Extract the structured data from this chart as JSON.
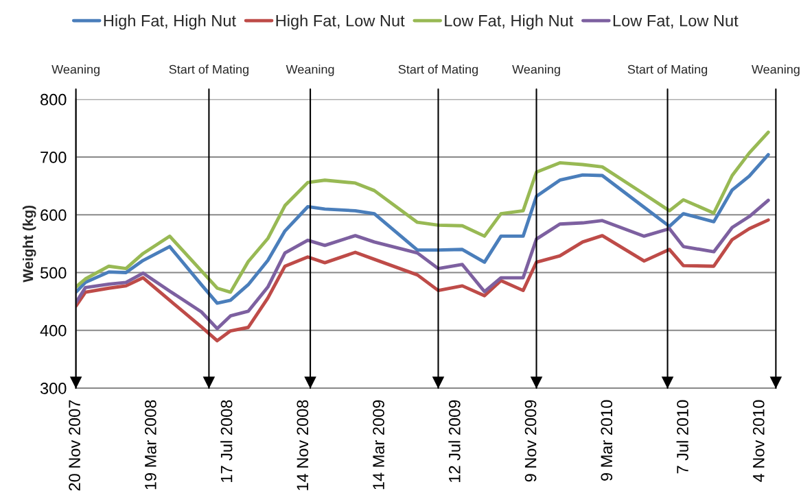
{
  "chart_data": {
    "type": "line",
    "ylabel": "Weight (kg)",
    "x": [
      "2007-11-20",
      "2007-12-05",
      "2008-01-11",
      "2008-02-07",
      "2008-03-05",
      "2008-04-16",
      "2008-06-05",
      "2008-06-30",
      "2008-07-21",
      "2008-08-18",
      "2008-09-18",
      "2008-10-15",
      "2008-11-20",
      "2008-12-17",
      "2009-02-03",
      "2009-03-05",
      "2009-05-12",
      "2009-06-14",
      "2009-07-22",
      "2009-08-26",
      "2009-09-21",
      "2009-10-26",
      "2009-11-16",
      "2009-12-23",
      "2010-01-28",
      "2010-02-28",
      "2010-05-05",
      "2010-06-14",
      "2010-07-06",
      "2010-08-23",
      "2010-09-21",
      "2010-10-18",
      "2010-11-17"
    ],
    "series": [
      {
        "name": "High Fat, High Nut",
        "color": "#4a7ebb",
        "values": [
          466,
          483,
          501,
          500,
          521,
          545,
          479,
          447,
          452,
          479,
          521,
          572,
          614,
          610,
          607,
          602,
          539,
          539,
          540,
          518,
          563,
          563,
          632,
          660,
          669,
          668,
          613,
          580,
          602,
          588,
          643,
          667,
          704
        ]
      },
      {
        "name": "High Fat, Low Nut",
        "color": "#be4b48",
        "values": [
          442,
          466,
          473,
          477,
          491,
          452,
          406,
          382,
          399,
          405,
          456,
          511,
          527,
          517,
          535,
          523,
          496,
          469,
          477,
          460,
          486,
          469,
          518,
          529,
          553,
          564,
          520,
          540,
          512,
          511,
          557,
          576,
          591
        ]
      },
      {
        "name": "Low Fat, High Nut",
        "color": "#98b954",
        "values": [
          475,
          489,
          511,
          507,
          533,
          563,
          503,
          473,
          466,
          519,
          559,
          616,
          656,
          660,
          655,
          642,
          587,
          582,
          581,
          563,
          602,
          607,
          674,
          690,
          687,
          683,
          636,
          607,
          626,
          603,
          668,
          707,
          743
        ]
      },
      {
        "name": "Low Fat, Low Nut",
        "color": "#7d60a0",
        "values": [
          448,
          474,
          480,
          483,
          499,
          468,
          432,
          403,
          425,
          433,
          475,
          534,
          556,
          547,
          564,
          553,
          534,
          507,
          514,
          467,
          491,
          491,
          558,
          584,
          586,
          590,
          563,
          576,
          545,
          536,
          578,
          597,
          625
        ]
      }
    ],
    "xlim": [
      "2007-11-20",
      "2010-11-29"
    ],
    "xticks": [
      {
        "value": "2007-11-20",
        "label": "20 Nov 2007"
      },
      {
        "value": "2008-03-19",
        "label": "19 Mar 2008"
      },
      {
        "value": "2008-07-17",
        "label": "17 Jul 2008"
      },
      {
        "value": "2008-11-14",
        "label": "14 Nov 2008"
      },
      {
        "value": "2009-03-14",
        "label": "14 Mar 2009"
      },
      {
        "value": "2009-07-12",
        "label": "12 Jul 2009"
      },
      {
        "value": "2009-11-09",
        "label": "9 Nov 2009"
      },
      {
        "value": "2010-03-09",
        "label": "9 Mar 2010"
      },
      {
        "value": "2010-07-07",
        "label": "7 Jul 2010"
      },
      {
        "value": "2010-11-04",
        "label": "4 Nov 2010"
      }
    ],
    "ylim": [
      300,
      800
    ],
    "yticks": [
      300,
      400,
      500,
      600,
      700,
      800
    ],
    "ref_lines": [
      {
        "axis": "x",
        "value": "2007-11-20",
        "label": "Weaning",
        "color": "#000000"
      },
      {
        "axis": "x",
        "value": "2008-06-17",
        "label": "Start of Mating",
        "color": "#000000"
      },
      {
        "axis": "x",
        "value": "2008-11-24",
        "label": "Weaning",
        "color": "#000000"
      },
      {
        "axis": "x",
        "value": "2009-06-14",
        "label": "Start of Mating",
        "color": "#000000"
      },
      {
        "axis": "x",
        "value": "2009-11-16",
        "label": "Weaning",
        "color": "#000000"
      },
      {
        "axis": "x",
        "value": "2010-06-11",
        "label": "Start of Mating",
        "color": "#000000"
      },
      {
        "axis": "x",
        "value": "2010-11-29",
        "label": "Weaning",
        "color": "#000000"
      }
    ],
    "grid": "y",
    "legend": "top",
    "marker": "none",
    "line_style": "solid"
  }
}
